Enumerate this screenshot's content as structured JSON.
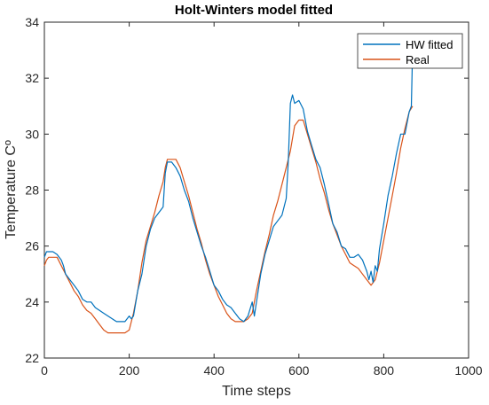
{
  "chart_data": {
    "type": "line",
    "title": "Holt-Winters model fitted",
    "xlabel": "Time steps",
    "ylabel": "Temperature Cº",
    "xlim": [
      0,
      1000
    ],
    "ylim": [
      22,
      34
    ],
    "xticks": [
      0,
      200,
      400,
      600,
      800,
      1000
    ],
    "yticks": [
      22,
      24,
      26,
      28,
      30,
      32,
      34
    ],
    "grid": false,
    "legend_position": "top-right",
    "series": [
      {
        "name": "HW fitted",
        "color": "#0072BD",
        "x": [
          0,
          5,
          10,
          20,
          30,
          40,
          45,
          50,
          60,
          70,
          80,
          90,
          100,
          110,
          120,
          130,
          140,
          150,
          160,
          170,
          180,
          190,
          200,
          205,
          210,
          220,
          230,
          240,
          250,
          260,
          270,
          280,
          285,
          290,
          295,
          300,
          310,
          320,
          330,
          340,
          350,
          360,
          370,
          380,
          390,
          400,
          410,
          420,
          430,
          440,
          450,
          460,
          470,
          480,
          490,
          495,
          500,
          510,
          520,
          530,
          540,
          550,
          560,
          570,
          575,
          580,
          585,
          590,
          600,
          610,
          620,
          630,
          640,
          650,
          660,
          670,
          680,
          690,
          700,
          710,
          720,
          730,
          740,
          750,
          760,
          765,
          770,
          775,
          780,
          785,
          790,
          800,
          810,
          820,
          830,
          840,
          850,
          860,
          865,
          868
        ],
        "y": [
          25.6,
          25.8,
          25.8,
          25.8,
          25.7,
          25.5,
          25.3,
          25.0,
          24.8,
          24.6,
          24.4,
          24.1,
          24.0,
          24.0,
          23.8,
          23.7,
          23.6,
          23.5,
          23.4,
          23.3,
          23.3,
          23.3,
          23.5,
          23.4,
          23.5,
          24.4,
          25.0,
          26.0,
          26.6,
          27.0,
          27.2,
          27.4,
          28.6,
          29.0,
          29.0,
          29.0,
          28.8,
          28.5,
          28.0,
          27.6,
          27.0,
          26.5,
          26.0,
          25.6,
          25.1,
          24.6,
          24.4,
          24.1,
          23.9,
          23.8,
          23.6,
          23.4,
          23.3,
          23.5,
          24.0,
          23.5,
          24.0,
          25.0,
          25.7,
          26.2,
          26.7,
          26.9,
          27.1,
          27.7,
          29.0,
          31.1,
          31.4,
          31.1,
          31.2,
          30.9,
          30.1,
          29.6,
          29.1,
          28.8,
          28.2,
          27.5,
          26.8,
          26.5,
          26.0,
          25.9,
          25.6,
          25.6,
          25.7,
          25.5,
          25.1,
          24.8,
          25.1,
          24.7,
          25.3,
          25.1,
          25.9,
          26.8,
          27.8,
          28.5,
          29.3,
          30.0,
          30.0,
          30.8,
          31.0,
          33.0
        ]
      },
      {
        "name": "Real",
        "color": "#D95319",
        "x": [
          0,
          5,
          10,
          20,
          30,
          40,
          50,
          60,
          70,
          80,
          90,
          100,
          110,
          120,
          130,
          140,
          150,
          160,
          170,
          180,
          190,
          200,
          205,
          210,
          220,
          230,
          240,
          250,
          260,
          270,
          280,
          285,
          290,
          300,
          310,
          320,
          330,
          340,
          350,
          360,
          370,
          380,
          390,
          400,
          410,
          420,
          430,
          440,
          450,
          460,
          470,
          480,
          490,
          500,
          510,
          520,
          530,
          540,
          550,
          560,
          570,
          580,
          590,
          600,
          610,
          620,
          630,
          640,
          650,
          660,
          670,
          680,
          690,
          700,
          710,
          720,
          730,
          740,
          750,
          760,
          770,
          780,
          790,
          800,
          810,
          820,
          830,
          840,
          850,
          860,
          868
        ],
        "y": [
          25.3,
          25.5,
          25.6,
          25.6,
          25.6,
          25.3,
          25.0,
          24.7,
          24.4,
          24.2,
          23.9,
          23.7,
          23.6,
          23.4,
          23.2,
          23.0,
          22.9,
          22.9,
          22.9,
          22.9,
          22.9,
          23.0,
          23.3,
          23.6,
          24.4,
          25.4,
          26.2,
          26.7,
          27.2,
          27.8,
          28.3,
          28.8,
          29.1,
          29.1,
          29.1,
          28.8,
          28.3,
          27.8,
          27.2,
          26.6,
          26.1,
          25.5,
          25.0,
          24.6,
          24.2,
          23.9,
          23.6,
          23.4,
          23.3,
          23.3,
          23.3,
          23.4,
          23.6,
          24.4,
          25.1,
          25.8,
          26.4,
          27.1,
          27.6,
          28.2,
          28.8,
          29.4,
          30.3,
          30.5,
          30.5,
          30.0,
          29.5,
          29.0,
          28.4,
          27.9,
          27.3,
          26.8,
          26.4,
          26.0,
          25.7,
          25.4,
          25.3,
          25.2,
          25.0,
          24.8,
          24.6,
          24.8,
          25.4,
          26.2,
          27.0,
          27.8,
          28.6,
          29.5,
          30.2,
          30.8,
          31.0
        ]
      }
    ]
  }
}
